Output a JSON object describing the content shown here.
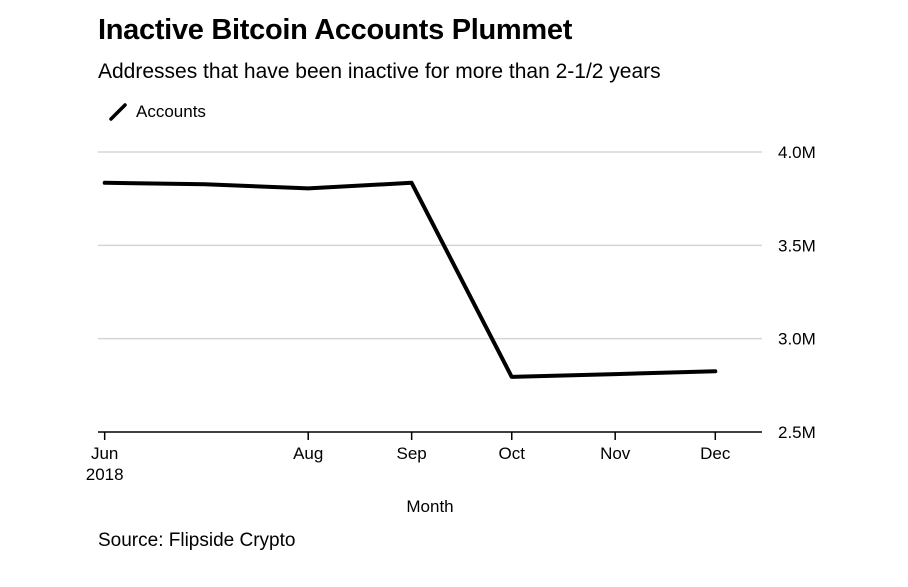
{
  "title": "Inactive Bitcoin Accounts Plummet",
  "subtitle": "Addresses that have been inactive for more than 2-1/2 years",
  "source": "Source: Flipside Crypto",
  "chart_data": {
    "type": "line",
    "x": [
      "2018-06-01",
      "2018-07-01",
      "2018-08-01",
      "2018-09-01",
      "2018-10-01",
      "2018-11-01",
      "2018-12-01"
    ],
    "series": [
      {
        "name": "Accounts",
        "color": "#000000",
        "values": [
          3835000,
          3827000,
          3805000,
          3835000,
          2795000,
          2810000,
          2825000
        ]
      }
    ],
    "xlabel": "Month",
    "ylabel": "",
    "ylim": [
      2500000,
      4000000
    ],
    "yticks": [
      2500000,
      3000000,
      3500000,
      4000000
    ],
    "ytick_labels": [
      "2.5M",
      "3.0M",
      "3.5M",
      "4.0M"
    ],
    "xticks": [
      {
        "date": "2018-06-01",
        "label": "Jun",
        "sublabel": "2018"
      },
      {
        "date": "2018-08-01",
        "label": "Aug"
      },
      {
        "date": "2018-09-01",
        "label": "Sep"
      },
      {
        "date": "2018-10-01",
        "label": "Oct"
      },
      {
        "date": "2018-11-01",
        "label": "Nov"
      },
      {
        "date": "2018-12-01",
        "label": "Dec"
      }
    ],
    "xlim": [
      "2018-05-30",
      "2018-12-15"
    ],
    "grid": true,
    "legend": "top-left",
    "axis_side": "right"
  }
}
